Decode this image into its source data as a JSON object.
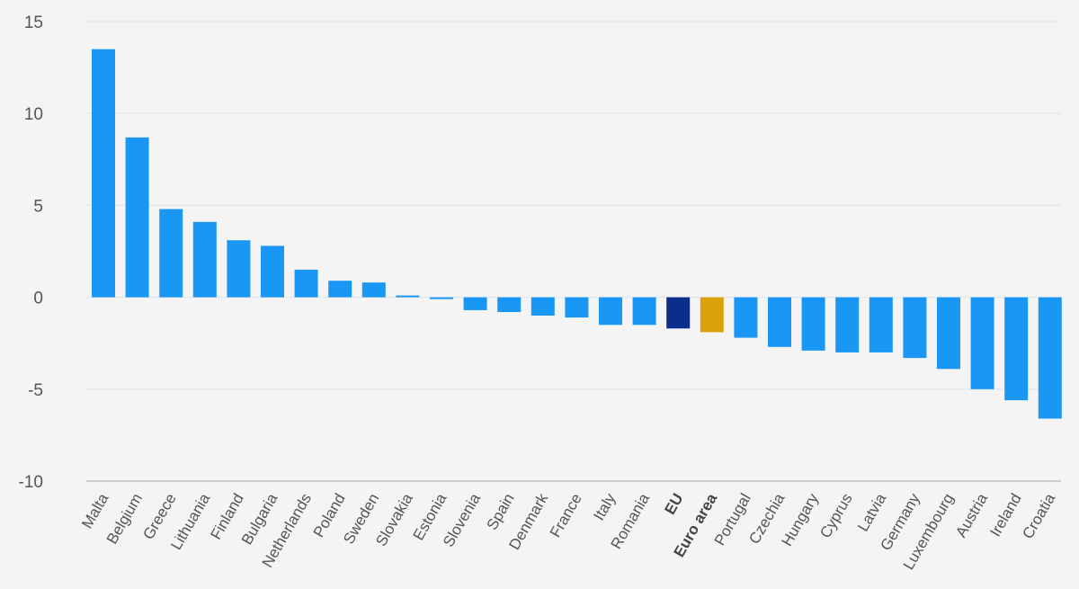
{
  "chart_data": {
    "type": "bar",
    "title": "",
    "xlabel": "",
    "ylabel": "",
    "ylim": [
      -10,
      15
    ],
    "yticks": [
      15,
      10,
      5,
      0,
      -5,
      -10
    ],
    "ytick_labels": [
      "15",
      "10",
      "5",
      "0",
      "-5",
      "-10"
    ],
    "grid": true,
    "categories": [
      "Malta",
      "Belgium",
      "Greece",
      "Lithuania",
      "Finland",
      "Bulgaria",
      "Netherlands",
      "Poland",
      "Sweden",
      "Slovakia",
      "Estonia",
      "Slovenia",
      "Spain",
      "Denmark",
      "France",
      "Italy",
      "Romania",
      "EU",
      "Euro area",
      "Portugal",
      "Czechia",
      "Hungary",
      "Cyprus",
      "Latvia",
      "Germany",
      "Luxembourg",
      "Austria",
      "Ireland",
      "Croatia"
    ],
    "values": [
      13.5,
      8.7,
      4.8,
      4.1,
      3.1,
      2.8,
      1.5,
      0.9,
      0.8,
      0.1,
      -0.1,
      -0.7,
      -0.8,
      -1.0,
      -1.1,
      -1.5,
      -1.5,
      -1.7,
      -1.9,
      -2.2,
      -2.7,
      -2.9,
      -3.0,
      -3.0,
      -3.3,
      -3.9,
      -5.0,
      -5.6,
      -6.6
    ],
    "bold_categories": [
      "EU",
      "Euro area"
    ],
    "colors": {
      "default": "#1a96f5",
      "EU": "#0b2e8a",
      "Euro area": "#daa10c",
      "grid": "#dfe6ee",
      "background": "#f4f4f4"
    }
  }
}
